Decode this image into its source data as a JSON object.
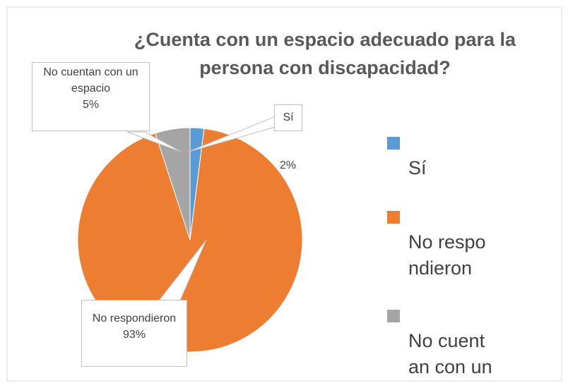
{
  "chart_data": {
    "type": "pie",
    "title": "¿Cuenta con un espacio adecuado para la persona con discapacidad?",
    "categories": [
      "Sí",
      "No respondieron",
      "No cuentan con un espacio"
    ],
    "values": [
      2,
      93,
      5
    ],
    "value_labels": [
      "2%",
      "93%",
      "5%"
    ],
    "colors": [
      "#5b9bd5",
      "#ed7d31",
      "#a5a5a5"
    ],
    "legend": "right"
  }
}
